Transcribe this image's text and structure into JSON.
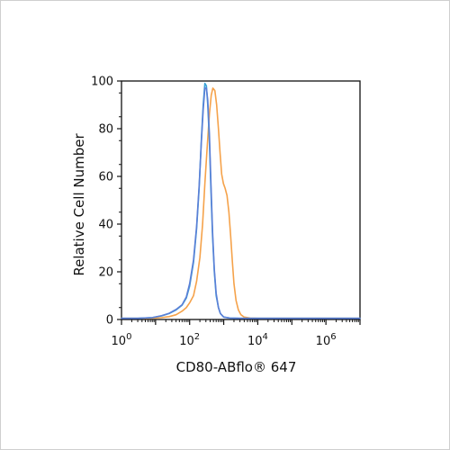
{
  "chart_data": {
    "type": "line",
    "xlabel": "CD80-ABflo® 647",
    "ylabel": "Relative Cell Number",
    "x_scale": "log",
    "xlim": [
      1,
      10000000
    ],
    "ylim": [
      0,
      100
    ],
    "y_ticks": [
      "0",
      "20",
      "40",
      "60",
      "80",
      "100"
    ],
    "x_ticks": [
      {
        "base": "10",
        "exp": "0",
        "value": 1
      },
      {
        "base": "10",
        "exp": "2",
        "value": 100
      },
      {
        "base": "10",
        "exp": "4",
        "value": 10000
      },
      {
        "base": "10",
        "exp": "6",
        "value": 1000000
      }
    ],
    "grid": false,
    "series": [
      {
        "color": "#f5a24a",
        "points": [
          [
            1,
            0.5
          ],
          [
            3,
            0.5
          ],
          [
            8,
            0.6
          ],
          [
            15,
            0.8
          ],
          [
            25,
            1.2
          ],
          [
            40,
            2
          ],
          [
            60,
            3.5
          ],
          [
            80,
            5
          ],
          [
            100,
            7
          ],
          [
            130,
            10
          ],
          [
            160,
            16
          ],
          [
            200,
            26
          ],
          [
            240,
            40
          ],
          [
            280,
            57
          ],
          [
            330,
            73
          ],
          [
            380,
            86
          ],
          [
            430,
            94
          ],
          [
            480,
            97
          ],
          [
            550,
            96
          ],
          [
            620,
            90
          ],
          [
            700,
            80
          ],
          [
            780,
            70
          ],
          [
            870,
            61
          ],
          [
            980,
            57
          ],
          [
            1100,
            55
          ],
          [
            1250,
            52
          ],
          [
            1420,
            45
          ],
          [
            1600,
            35
          ],
          [
            1800,
            24
          ],
          [
            2000,
            15
          ],
          [
            2300,
            8
          ],
          [
            2700,
            4
          ],
          [
            3200,
            2
          ],
          [
            4000,
            1
          ],
          [
            6000,
            0.6
          ],
          [
            10000,
            0.5
          ],
          [
            100000,
            0.5
          ],
          [
            1000000,
            0.5
          ],
          [
            10000000,
            0.5
          ]
        ]
      },
      {
        "color": "#3aa3d8",
        "points": [
          [
            1,
            0.5
          ],
          [
            3,
            0.5
          ],
          [
            8,
            0.8
          ],
          [
            15,
            1.5
          ],
          [
            25,
            2.5
          ],
          [
            40,
            4
          ],
          [
            60,
            6
          ],
          [
            80,
            9
          ],
          [
            100,
            14
          ],
          [
            130,
            24
          ],
          [
            160,
            38
          ],
          [
            190,
            55
          ],
          [
            220,
            75
          ],
          [
            250,
            90
          ],
          [
            280,
            99
          ],
          [
            310,
            98
          ],
          [
            340,
            90
          ],
          [
            380,
            75
          ],
          [
            420,
            55
          ],
          [
            470,
            35
          ],
          [
            530,
            20
          ],
          [
            600,
            10
          ],
          [
            700,
            5
          ],
          [
            800,
            2.5
          ],
          [
            1000,
            1
          ],
          [
            1500,
            0.6
          ],
          [
            3000,
            0.5
          ],
          [
            100000,
            0.5
          ],
          [
            10000000,
            0.5
          ]
        ]
      },
      {
        "color": "#5b7fd6",
        "points": [
          [
            1,
            0.5
          ],
          [
            3,
            0.5
          ],
          [
            8,
            0.8
          ],
          [
            15,
            1.6
          ],
          [
            25,
            2.6
          ],
          [
            40,
            4.2
          ],
          [
            60,
            6.2
          ],
          [
            80,
            9.5
          ],
          [
            100,
            15
          ],
          [
            130,
            25
          ],
          [
            160,
            39
          ],
          [
            190,
            56
          ],
          [
            220,
            74
          ],
          [
            250,
            88
          ],
          [
            280,
            97
          ],
          [
            310,
            97
          ],
          [
            340,
            92
          ],
          [
            380,
            78
          ],
          [
            420,
            58
          ],
          [
            470,
            37
          ],
          [
            530,
            21
          ],
          [
            600,
            11
          ],
          [
            700,
            5
          ],
          [
            800,
            2.5
          ],
          [
            1000,
            1
          ],
          [
            1500,
            0.6
          ],
          [
            3000,
            0.5
          ],
          [
            100000,
            0.5
          ],
          [
            10000000,
            0.5
          ]
        ]
      }
    ]
  }
}
